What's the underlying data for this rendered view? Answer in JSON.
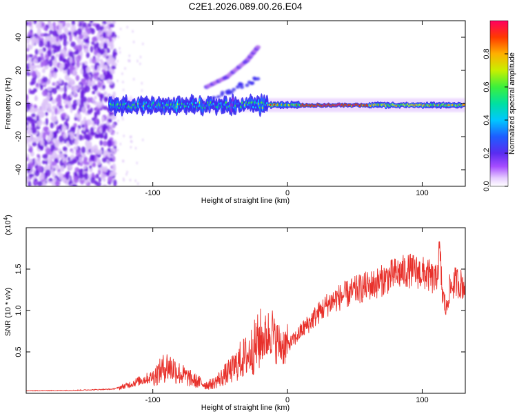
{
  "title": "C2E1.2026.089.00.26.E04",
  "colors": {
    "axis": "#000000",
    "snr_line": "#e8302a",
    "noise_points": "#7a2fe0",
    "colormap": [
      "#ffffff",
      "#d9b8f5",
      "#8a2be2",
      "#3b2df0",
      "#1e6fff",
      "#00d7ff",
      "#00e080",
      "#3cf03c",
      "#d8f000",
      "#ff9a00",
      "#ff2a00",
      "#ff0066"
    ]
  },
  "chart_data": [
    {
      "type": "heatmap",
      "title": "C2E1.2026.089.00.26.E04",
      "xlabel": "Height of straight line (km)",
      "ylabel": "Frequency (Hz)",
      "xlim": [
        -194,
        132
      ],
      "ylim": [
        -50,
        50
      ],
      "xticks": [
        -100,
        0,
        100
      ],
      "yticks": [
        -40,
        -20,
        0,
        20,
        40
      ],
      "colorbar": {
        "label": "Normalized spectral amplitude",
        "range": [
          0.0,
          1.0
        ],
        "ticks": [
          0.0,
          0.2,
          0.4,
          0.6,
          0.8
        ]
      },
      "features": [
        {
          "name": "main-echo-band",
          "x_range": [
            -132,
            132
          ],
          "frequency_hz": -1,
          "peak_amplitude": 0.95
        },
        {
          "name": "noise-region",
          "x_range": [
            -194,
            -130
          ],
          "frequency_range_hz": [
            -50,
            50
          ],
          "amplitude": 0.2
        },
        {
          "name": "secondary-trail",
          "x": [
            -60,
            -45,
            -30,
            -22
          ],
          "frequency_hz": [
            10,
            16,
            26,
            34
          ],
          "amplitude": 0.3
        }
      ]
    },
    {
      "type": "line",
      "xlabel": "Height of straight line (km)",
      "ylabel": "SNR (10 * v/v)",
      "y_multiplier": "(x10^4)",
      "xlim": [
        -194,
        132
      ],
      "ylim": [
        0,
        20000
      ],
      "xticks": [
        -100,
        0,
        100
      ],
      "yticks": [
        5000,
        10000,
        15000
      ],
      "ytick_labels": [
        "0.5",
        "1.0",
        "1.5"
      ],
      "series": [
        {
          "name": "SNR",
          "x": [
            -194,
            -160,
            -130,
            -120,
            -110,
            -100,
            -95,
            -90,
            -85,
            -80,
            -75,
            -70,
            -65,
            -60,
            -55,
            -50,
            -45,
            -40,
            -35,
            -30,
            -25,
            -20,
            -15,
            -12,
            -10,
            -5,
            0,
            5,
            10,
            15,
            20,
            25,
            30,
            35,
            40,
            45,
            50,
            55,
            60,
            65,
            70,
            75,
            80,
            85,
            90,
            95,
            100,
            105,
            110,
            113,
            115,
            118,
            120,
            125,
            132
          ],
          "values": [
            300,
            350,
            500,
            900,
            1500,
            2000,
            2600,
            3300,
            3000,
            2400,
            2000,
            1600,
            1300,
            1000,
            1200,
            1800,
            2400,
            3000,
            4000,
            4500,
            5500,
            6500,
            6800,
            8000,
            6500,
            5800,
            5800,
            6500,
            7500,
            8300,
            9200,
            10000,
            10800,
            11300,
            11700,
            12000,
            12400,
            12700,
            13000,
            13200,
            13600,
            14000,
            14400,
            14600,
            14800,
            14700,
            14500,
            14200,
            13500,
            17000,
            12000,
            10000,
            12500,
            13500,
            13000
          ]
        }
      ]
    }
  ]
}
